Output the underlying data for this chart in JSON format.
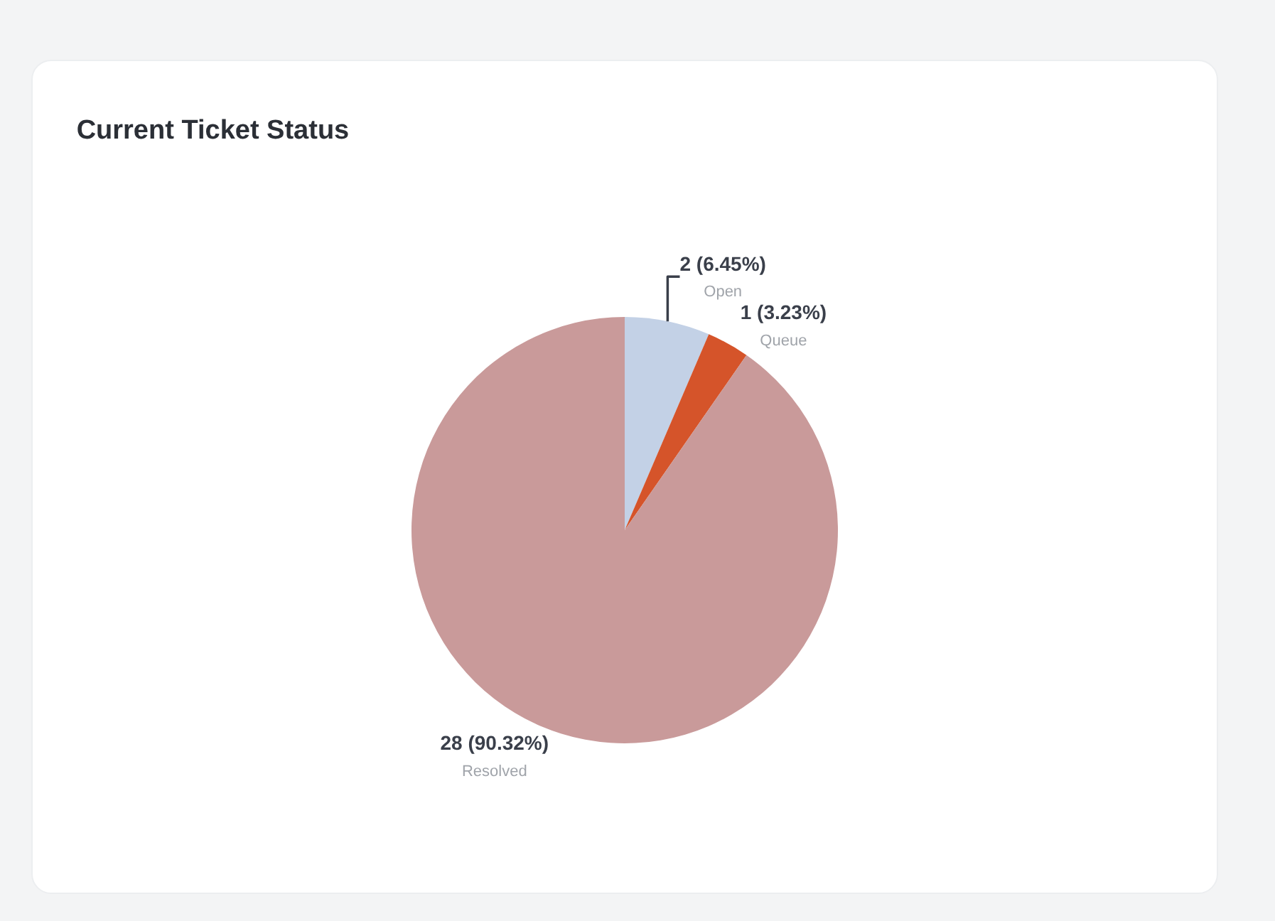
{
  "chart_data": {
    "type": "pie",
    "title": "Current Ticket Status",
    "categories": [
      "Open",
      "Queue",
      "Resolved"
    ],
    "values": [
      2,
      1,
      28
    ],
    "colors": [
      "#c3d1e6",
      "#d5542a",
      "#c99a9a"
    ],
    "value_labels": [
      "2 (6.45%)",
      "1 (3.23%)",
      "28 (90.32%)"
    ],
    "legend": false
  }
}
